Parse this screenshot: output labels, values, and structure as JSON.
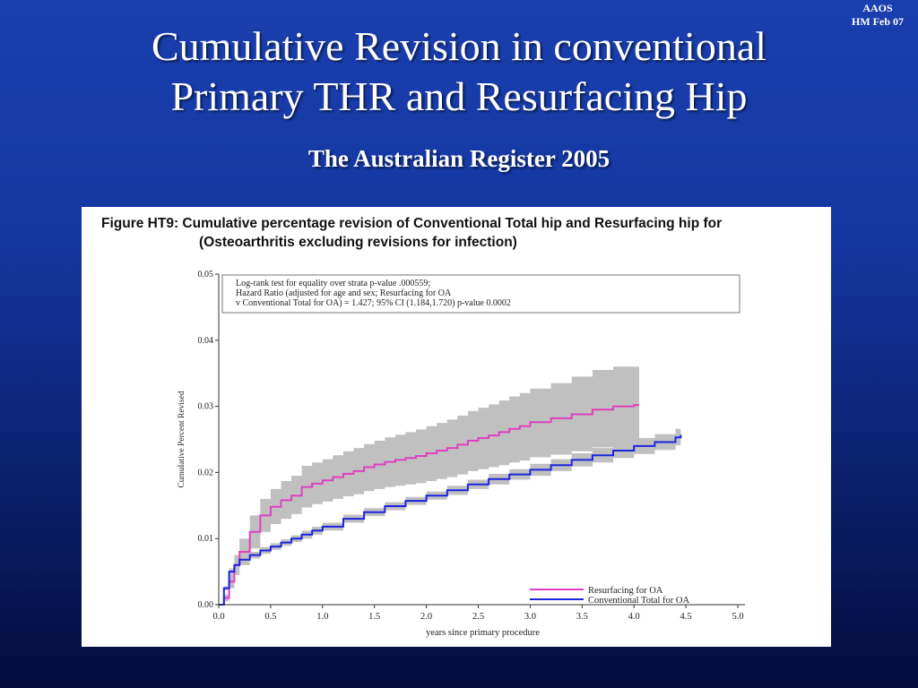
{
  "corner": {
    "line1": "AAOS",
    "line2": "HM Feb 07"
  },
  "slide": {
    "title_line1": "Cumulative Revision in conventional",
    "title_line2": "Primary THR and Resurfacing Hip",
    "subtitle": "The Australian Register 2005"
  },
  "colors": {
    "resurfacing": "#e040c0",
    "conventional": "#1c24e0",
    "band": "#c0c0c0"
  },
  "chart_data": {
    "type": "line",
    "title_line1": "Figure HT9:  Cumulative percentage revision of Conventional Total hip and Resurfacing hip for",
    "title_line2": "(Osteoarthritis excluding revisions for infection)",
    "xlabel": "years since primary procedure",
    "ylabel": "Cumulative Percent Revised",
    "xlim": [
      0,
      5
    ],
    "ylim": [
      0,
      0.05
    ],
    "x_ticks": [
      "0.0",
      "0.5",
      "1.0",
      "1.5",
      "2.0",
      "2.5",
      "3.0",
      "3.5",
      "4.0",
      "4.5",
      "5.0"
    ],
    "y_ticks": [
      "0.00",
      "0.01",
      "0.02",
      "0.03",
      "0.04",
      "0.05"
    ],
    "annotation": [
      "Log-rank test for equality over strata p-value .000559;",
      "Hazard Ratio (adjusted for age and sex; Resurfacing for OA",
      "v Conventional Total for OA) = 1.427; 95% CI (1.184,1.720) p-value  0.0002"
    ],
    "legend_position": "bottom-right",
    "grid": false,
    "series": [
      {
        "name": "Resurfacing for OA",
        "color": "#e040c0",
        "x": [
          0,
          0.05,
          0.1,
          0.15,
          0.2,
          0.3,
          0.4,
          0.5,
          0.6,
          0.7,
          0.8,
          0.9,
          1.0,
          1.1,
          1.2,
          1.3,
          1.4,
          1.5,
          1.6,
          1.7,
          1.8,
          1.9,
          2.0,
          2.1,
          2.2,
          2.3,
          2.4,
          2.5,
          2.6,
          2.7,
          2.8,
          2.9,
          3.0,
          3.2,
          3.4,
          3.6,
          3.8,
          4.0,
          4.05
        ],
        "y": [
          0,
          0.001,
          0.0035,
          0.006,
          0.008,
          0.011,
          0.0135,
          0.0148,
          0.0158,
          0.0165,
          0.0178,
          0.0183,
          0.0188,
          0.0193,
          0.0198,
          0.0202,
          0.0208,
          0.0212,
          0.0216,
          0.0219,
          0.0222,
          0.0225,
          0.0229,
          0.0233,
          0.0237,
          0.0242,
          0.0248,
          0.0252,
          0.0256,
          0.0261,
          0.0266,
          0.027,
          0.0276,
          0.0282,
          0.0288,
          0.0295,
          0.03,
          0.0302,
          0.0302
        ],
        "lower": [
          0,
          0.0005,
          0.0025,
          0.0045,
          0.006,
          0.0085,
          0.011,
          0.0122,
          0.013,
          0.0137,
          0.0147,
          0.0152,
          0.0156,
          0.016,
          0.0164,
          0.0167,
          0.0172,
          0.0175,
          0.0178,
          0.018,
          0.0182,
          0.0184,
          0.0187,
          0.019,
          0.0193,
          0.0197,
          0.0202,
          0.0205,
          0.0208,
          0.0211,
          0.0215,
          0.0218,
          0.0223,
          0.0227,
          0.0232,
          0.0238,
          0.0243,
          0.0246,
          0.0246
        ],
        "upper": [
          0,
          0.0015,
          0.0045,
          0.0075,
          0.01,
          0.0135,
          0.016,
          0.0175,
          0.0187,
          0.0195,
          0.021,
          0.0215,
          0.022,
          0.0226,
          0.0232,
          0.0237,
          0.0243,
          0.0248,
          0.0253,
          0.0257,
          0.0261,
          0.0265,
          0.027,
          0.0275,
          0.028,
          0.0286,
          0.0293,
          0.0298,
          0.0303,
          0.0309,
          0.0315,
          0.032,
          0.0327,
          0.0335,
          0.0345,
          0.0355,
          0.036,
          0.036,
          0.036
        ]
      },
      {
        "name": "Conventional Total for OA",
        "color": "#1c24e0",
        "x": [
          0,
          0.05,
          0.1,
          0.15,
          0.2,
          0.3,
          0.4,
          0.5,
          0.6,
          0.7,
          0.8,
          0.9,
          1.0,
          1.2,
          1.4,
          1.6,
          1.8,
          2.0,
          2.2,
          2.4,
          2.6,
          2.8,
          3.0,
          3.2,
          3.4,
          3.6,
          3.8,
          4.0,
          4.2,
          4.4,
          4.45
        ],
        "y": [
          0,
          0.0025,
          0.005,
          0.006,
          0.0068,
          0.0075,
          0.0082,
          0.0088,
          0.0094,
          0.01,
          0.0106,
          0.0112,
          0.0118,
          0.013,
          0.014,
          0.0149,
          0.0157,
          0.0165,
          0.0173,
          0.0182,
          0.019,
          0.0197,
          0.0204,
          0.0211,
          0.0219,
          0.0226,
          0.0233,
          0.024,
          0.0246,
          0.0253,
          0.0257
        ],
        "lower": [
          0,
          0.0022,
          0.0045,
          0.0055,
          0.0063,
          0.007,
          0.0077,
          0.0083,
          0.0089,
          0.0095,
          0.01,
          0.0106,
          0.0112,
          0.0124,
          0.0134,
          0.0143,
          0.0151,
          0.0159,
          0.0166,
          0.0175,
          0.0182,
          0.0189,
          0.0195,
          0.0202,
          0.0209,
          0.0215,
          0.0222,
          0.0228,
          0.0234,
          0.0241,
          0.0244
        ],
        "upper": [
          0,
          0.0028,
          0.0055,
          0.0065,
          0.0073,
          0.008,
          0.0087,
          0.0093,
          0.0099,
          0.0105,
          0.0112,
          0.0118,
          0.0124,
          0.0136,
          0.0146,
          0.0155,
          0.0163,
          0.0171,
          0.018,
          0.0189,
          0.0198,
          0.0205,
          0.0213,
          0.022,
          0.0229,
          0.0237,
          0.0244,
          0.0252,
          0.0258,
          0.0266,
          0.0272
        ]
      }
    ]
  }
}
